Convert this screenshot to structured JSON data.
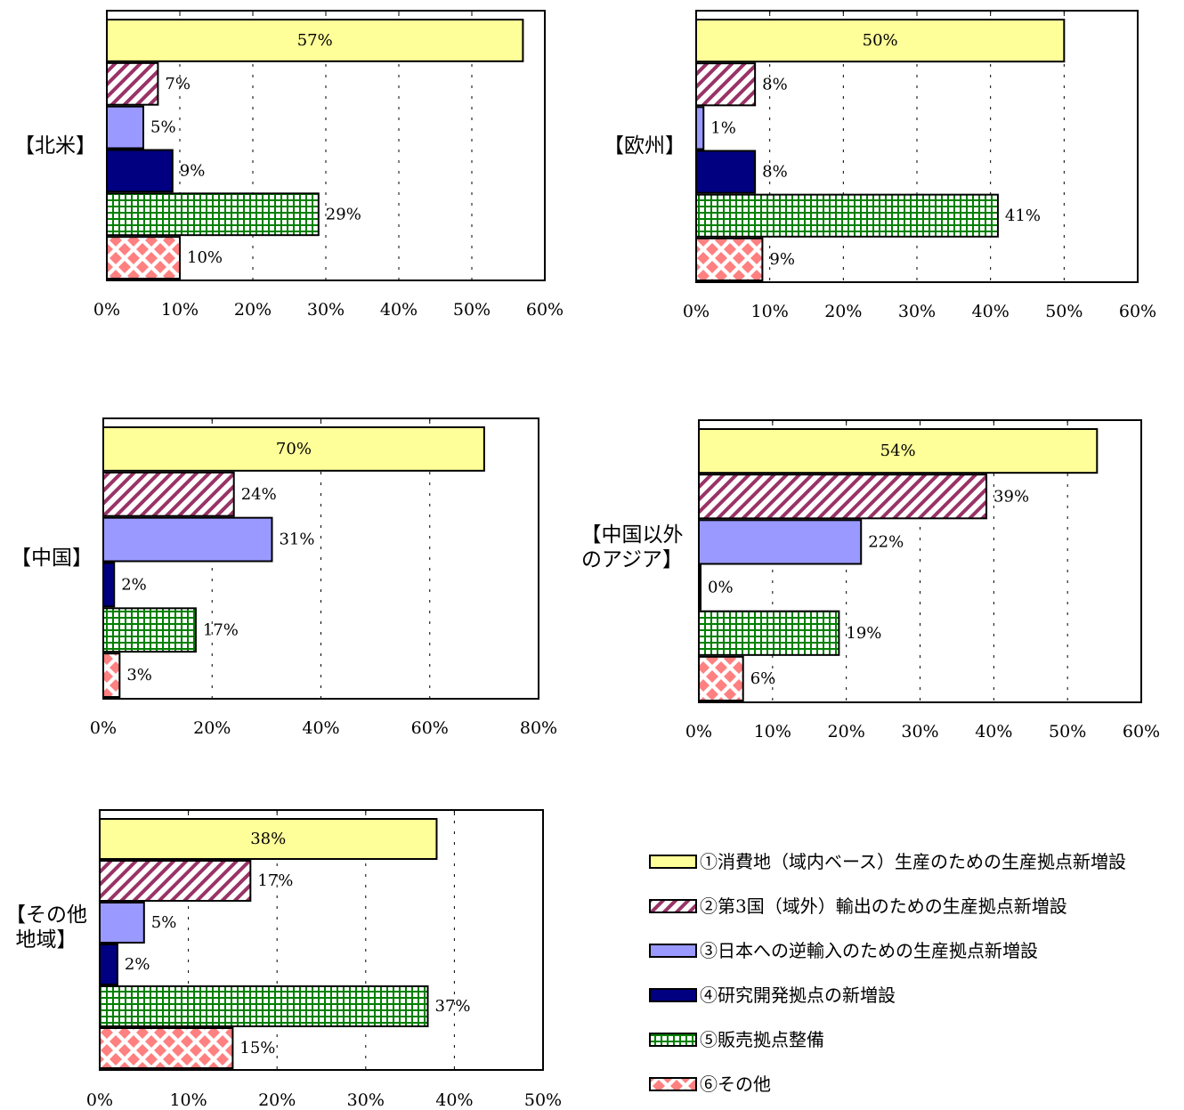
{
  "series_styles": [
    {
      "fill": "#ffff99",
      "pattern": "solid"
    },
    {
      "fill": "#993366",
      "pattern": "diagonal"
    },
    {
      "fill": "#9999ff",
      "pattern": "solid"
    },
    {
      "fill": "#000080",
      "pattern": "solid"
    },
    {
      "fill": "#008000",
      "pattern": "grid"
    },
    {
      "fill": "#ff8080",
      "pattern": "diamond"
    }
  ],
  "legend": {
    "items": [
      "①消費地（域内ベース）生産のための生産拠点新増設",
      "②第3国（域外）輸出のための生産拠点新増設",
      "③日本への逆輸入のための生産拠点新増設",
      "④研究開発拠点の新増設",
      "⑤販売拠点整備",
      "⑥その他"
    ]
  },
  "chart_data": [
    {
      "type": "bar",
      "orientation": "horizontal",
      "region_label": "【北米】",
      "values": [
        57,
        7,
        5,
        9,
        29,
        10
      ],
      "data_labels": [
        "57%",
        "7%",
        "5%",
        "9%",
        "29%",
        "10%"
      ],
      "xlim": [
        0,
        60
      ],
      "xticks": [
        "0%",
        "10%",
        "20%",
        "30%",
        "40%",
        "50%",
        "60%"
      ],
      "grid": "vertical-dashed"
    },
    {
      "type": "bar",
      "orientation": "horizontal",
      "region_label": "【欧州】",
      "values": [
        50,
        8,
        1,
        8,
        41,
        9
      ],
      "data_labels": [
        "50%",
        "8%",
        "1%",
        "8%",
        "41%",
        "9%"
      ],
      "xlim": [
        0,
        60
      ],
      "xticks": [
        "0%",
        "10%",
        "20%",
        "30%",
        "40%",
        "50%",
        "60%"
      ],
      "grid": "vertical-dashed"
    },
    {
      "type": "bar",
      "orientation": "horizontal",
      "region_label": "【中国】",
      "values": [
        70,
        24,
        31,
        2,
        17,
        3
      ],
      "data_labels": [
        "70%",
        "24%",
        "31%",
        "2%",
        "17%",
        "3%"
      ],
      "xlim": [
        0,
        80
      ],
      "xticks": [
        "0%",
        "20%",
        "40%",
        "60%",
        "80%"
      ],
      "grid": "vertical-dashed"
    },
    {
      "type": "bar",
      "orientation": "horizontal",
      "region_label": "【中国以外\nのアジア】",
      "values": [
        54,
        39,
        22,
        0,
        19,
        6
      ],
      "data_labels": [
        "54%",
        "39%",
        "22%",
        "0%",
        "19%",
        "6%"
      ],
      "xlim": [
        0,
        60
      ],
      "xticks": [
        "0%",
        "10%",
        "20%",
        "30%",
        "40%",
        "50%",
        "60%"
      ],
      "grid": "vertical-dashed"
    },
    {
      "type": "bar",
      "orientation": "horizontal",
      "region_label": "【その他\n地域】",
      "values": [
        38,
        17,
        5,
        2,
        37,
        15
      ],
      "data_labels": [
        "38%",
        "17%",
        "5%",
        "2%",
        "37%",
        "15%"
      ],
      "xlim": [
        0,
        50
      ],
      "xticks": [
        "0%",
        "10%",
        "20%",
        "30%",
        "40%",
        "50%"
      ],
      "grid": "vertical-dashed"
    }
  ]
}
